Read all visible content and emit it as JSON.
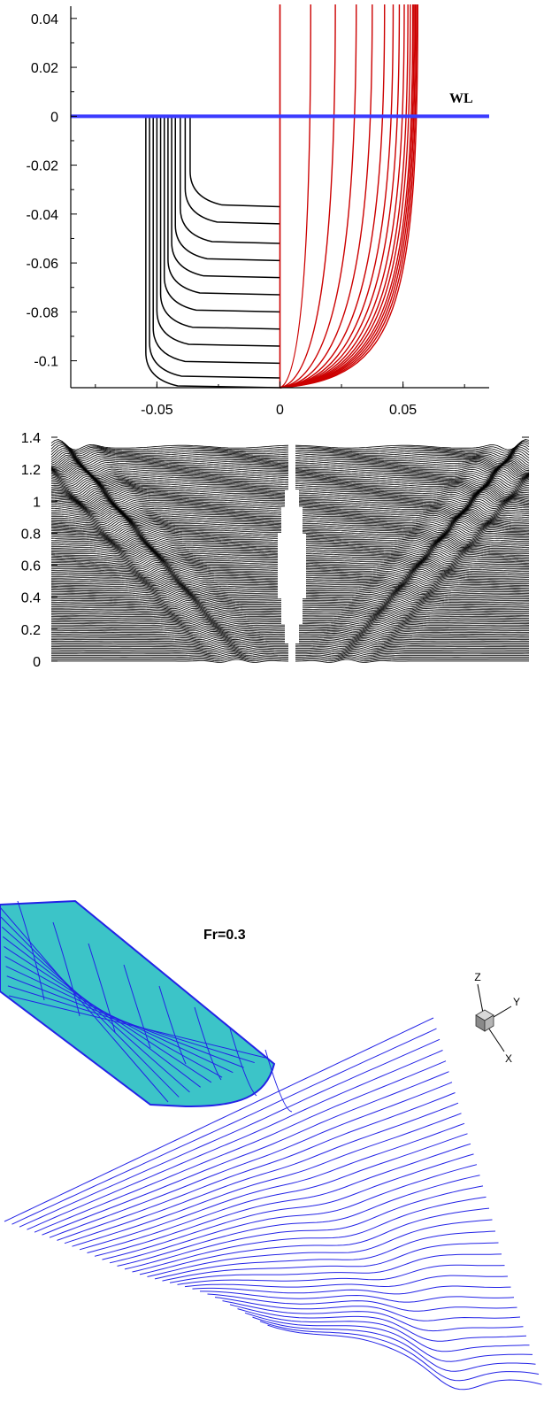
{
  "colors": {
    "black": "#000000",
    "red": "#cc0000",
    "waterline": "#3b3bff",
    "mesh": "#2323e6",
    "hull_fill": "#3cc4c8"
  },
  "chart_data": [
    {
      "type": "line",
      "xlim": [
        -0.085,
        0.085
      ],
      "ylim": [
        -0.111,
        0.045
      ],
      "x_ticks": [
        -0.05,
        0,
        0.05
      ],
      "x_tick_labels": [
        "-0.05",
        "0",
        "0.05"
      ],
      "y_ticks": [
        0.04,
        0.02,
        0,
        -0.02,
        -0.04,
        -0.06,
        -0.08,
        -0.1
      ],
      "y_tick_labels": [
        "0.04",
        "0.02",
        "0",
        "-0.02",
        "-0.04",
        "-0.06",
        "-0.08",
        "-0.1"
      ],
      "annotations": [
        "WL"
      ],
      "waterline_y": 0,
      "afterbody_sections": {
        "half_breadths_at_waterline": [
          -0.0545,
          -0.053,
          -0.0515,
          -0.05,
          -0.0485,
          -0.047,
          -0.0455,
          -0.044,
          -0.0425,
          -0.0405,
          -0.0385,
          -0.0365
        ],
        "keel_depths": [
          -0.111,
          -0.107,
          -0.101,
          -0.094,
          -0.087,
          -0.08,
          -0.073,
          -0.066,
          -0.059,
          -0.052,
          -0.044,
          -0.037
        ]
      },
      "forebody_sections": {
        "half_breadths_at_top": [
          0.0,
          0.0125,
          0.0225,
          0.031,
          0.0375,
          0.0425,
          0.046,
          0.0485,
          0.0505,
          0.052,
          0.053,
          0.054,
          0.0545,
          0.055,
          0.0555,
          0.056
        ]
      }
    },
    {
      "type": "line",
      "xlim": [
        -1.0,
        1.0
      ],
      "ylim": [
        0,
        1.4
      ],
      "y_ticks": [
        0,
        0.2,
        0.4,
        0.6,
        0.8,
        1.0,
        1.2,
        1.4
      ],
      "y_tick_labels": [
        "0",
        "0.2",
        "0.4",
        "0.6",
        "0.8",
        "1",
        "1.2",
        "1.4"
      ],
      "description_series": "wave profile cuts stacked along the hull length",
      "cut_count": 150
    },
    {
      "type": "area",
      "title": "Fr=0.3",
      "triad_labels": [
        "Z",
        "Y",
        "X"
      ],
      "wave_cut_count": 36
    }
  ]
}
